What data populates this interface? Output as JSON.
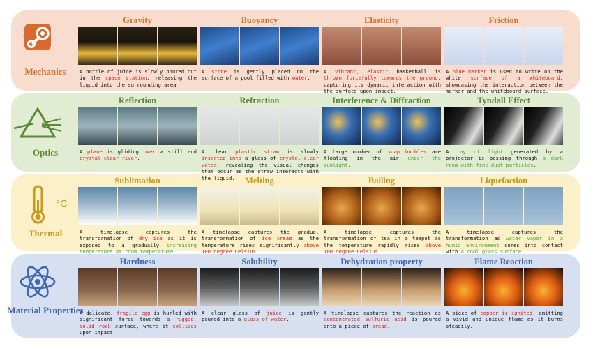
{
  "colors": {
    "mechanics_bg": "#f8dccd",
    "mechanics_title": "#d47030",
    "optics_bg": "#e1ecd3",
    "optics_title": "#5b8a3a",
    "thermal_bg": "#fcf0c8",
    "thermal_title": "#c79a1b",
    "material_bg": "#d6e0f0",
    "material_title": "#3d67b0",
    "highlight_red": "#e0201b",
    "highlight_green": "#3faa33"
  },
  "categories": [
    {
      "name": "Mechanics",
      "icon": "steam-engine-icon",
      "items": [
        {
          "title": "Gravity",
          "caption": [
            {
              "t": "A bottle of juice is slowly poured out in the "
            },
            {
              "t": "space station",
              "c": "r"
            },
            {
              "t": ", releasing the liquid into the surrounding area"
            }
          ]
        },
        {
          "title": "Buoyancy",
          "caption": [
            {
              "t": "A "
            },
            {
              "t": "stone",
              "c": "r"
            },
            {
              "t": " is gently placed on the surface of a pool filled with "
            },
            {
              "t": "water",
              "c": "r"
            },
            {
              "t": "."
            }
          ]
        },
        {
          "title": "Elasticity",
          "caption": [
            {
              "t": "A "
            },
            {
              "t": "vibrant, elastic",
              "c": "r"
            },
            {
              "t": " basketball is "
            },
            {
              "t": "thrown forcefully towards the ground",
              "c": "r"
            },
            {
              "t": ", capturing its dynamic interaction with the surface upon impact."
            }
          ]
        },
        {
          "title": "Friction",
          "caption": [
            {
              "t": "A "
            },
            {
              "t": "blue marker",
              "c": "r"
            },
            {
              "t": " is used to write on the white "
            },
            {
              "t": "surface of a whiteboard",
              "c": "r"
            },
            {
              "t": ", showcasing the interaction between the marker and the whiteboard surface."
            }
          ]
        }
      ]
    },
    {
      "name": "Optics",
      "icon": "prism-icon",
      "items": [
        {
          "title": "Reflection",
          "caption": [
            {
              "t": "A "
            },
            {
              "t": "plane",
              "c": "r"
            },
            {
              "t": " is gliding "
            },
            {
              "t": "over",
              "c": "r"
            },
            {
              "t": " a still and "
            },
            {
              "t": "crystal-clear river",
              "c": "r"
            },
            {
              "t": "."
            }
          ]
        },
        {
          "title": "Refraction",
          "caption": [
            {
              "t": "A clear "
            },
            {
              "t": "plastic straw",
              "c": "r"
            },
            {
              "t": " is slowly "
            },
            {
              "t": "inserted into",
              "c": "r"
            },
            {
              "t": " a glass of "
            },
            {
              "t": "crystal-clear water",
              "c": "r"
            },
            {
              "t": ", revealing the visual changes that occur as the straw interacts with the liquid."
            }
          ]
        },
        {
          "title": "Interference & Diffraction",
          "caption": [
            {
              "t": "A large number of "
            },
            {
              "t": "soap bubbles",
              "c": "r"
            },
            {
              "t": " are floating in the air "
            },
            {
              "t": "under the sunlight",
              "c": "g"
            },
            {
              "t": "."
            }
          ]
        },
        {
          "title": "Tyndall Effect",
          "caption": [
            {
              "t": "A "
            },
            {
              "t": "ray of light",
              "c": "g"
            },
            {
              "t": " generated by a projector is passing through "
            },
            {
              "t": "a dark room with fine dust particles",
              "c": "g"
            },
            {
              "t": "."
            }
          ]
        }
      ]
    },
    {
      "name": "Thermal",
      "icon": "thermometer-icon",
      "unit_symbol": "°C",
      "items": [
        {
          "title": "Sublimation",
          "caption": [
            {
              "t": "A timelapse captures the transformation of "
            },
            {
              "t": "dry ice",
              "c": "r"
            },
            {
              "t": " as it is exposed to a gradually "
            },
            {
              "t": "increasing temperature at room temperature",
              "c": "g"
            }
          ]
        },
        {
          "title": "Melting",
          "caption": [
            {
              "t": "A timelapse captures the gradual transformation of "
            },
            {
              "t": "ice cream",
              "c": "r"
            },
            {
              "t": " as the temperature rises significantly "
            },
            {
              "t": "above 100 degree Celsius",
              "c": "r"
            }
          ]
        },
        {
          "title": "Boiling",
          "caption": [
            {
              "t": "A timelapse captures the transformation of tea in a teapot as the temperature rapidly rises "
            },
            {
              "t": "above 100 degree Celsius",
              "c": "r"
            }
          ]
        },
        {
          "title": "Liquefaction",
          "caption": [
            {
              "t": "A timelapse captures the transformation as "
            },
            {
              "t": "water vapor in a humid environment",
              "c": "g"
            },
            {
              "t": " comes into contact with "
            },
            {
              "t": "a cool glass surface",
              "c": "g"
            },
            {
              "t": "."
            }
          ]
        }
      ]
    },
    {
      "name": "Material Properties",
      "icon": "atom-icon",
      "items": [
        {
          "title": "Hardness",
          "caption": [
            {
              "t": "A delicate, "
            },
            {
              "t": "fragile egg",
              "c": "r"
            },
            {
              "t": " is hurled with significant force towards a "
            },
            {
              "t": "rugged, solid rock",
              "c": "r"
            },
            {
              "t": " surface, where it "
            },
            {
              "t": "collides",
              "c": "r"
            },
            {
              "t": " upon impact"
            }
          ]
        },
        {
          "title": "Solubility",
          "caption": [
            {
              "t": "A clear glass of "
            },
            {
              "t": "juice",
              "c": "r"
            },
            {
              "t": " is gently poured into a "
            },
            {
              "t": "glass of water",
              "c": "r"
            },
            {
              "t": "."
            }
          ]
        },
        {
          "title": "Dehydration property",
          "caption": [
            {
              "t": "A timelapse captures the reaction as "
            },
            {
              "t": "concentrated sulfuric acid",
              "c": "r"
            },
            {
              "t": " is poured onto a piece of "
            },
            {
              "t": "bread",
              "c": "r"
            },
            {
              "t": "."
            }
          ]
        },
        {
          "title": "Flame Reaction",
          "caption": [
            {
              "t": "A piece of "
            },
            {
              "t": "copper is ignited",
              "c": "r"
            },
            {
              "t": ", emitting a vivid and unique flame as it burns steadily."
            }
          ]
        }
      ]
    }
  ]
}
